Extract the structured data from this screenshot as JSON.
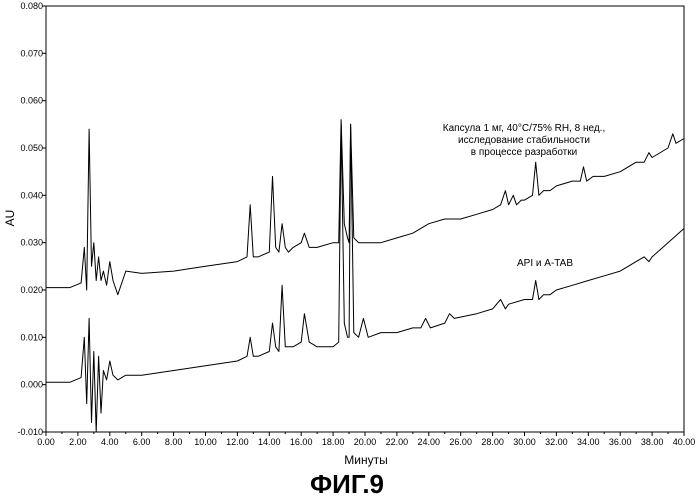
{
  "figure_caption": "ФИГ.9",
  "chart_data": {
    "type": "line",
    "xlabel": "Минуты",
    "ylabel": "AU",
    "xlim": [
      0,
      40
    ],
    "ylim": [
      -0.01,
      0.08
    ],
    "x_ticks": [
      "0.00",
      "2.00",
      "4.00",
      "6.00",
      "8.00",
      "10.00",
      "12.00",
      "14.00",
      "16.00",
      "18.00",
      "20.00",
      "22.00",
      "24.00",
      "26.00",
      "28.00",
      "30.00",
      "32.00",
      "34.00",
      "36.00",
      "38.00",
      "40.00"
    ],
    "y_ticks": [
      "-0.010",
      "0.000",
      "0.010",
      "0.020",
      "0.030",
      "0.040",
      "0.050",
      "0.060",
      "0.070",
      "0.080"
    ],
    "grid": false,
    "annotations": [
      {
        "lines": [
          "Капсула 1 мг, 40°C/75% RH, 8 нед.,",
          "исследование стабильности",
          "в процессе разработки"
        ],
        "series": 0
      },
      {
        "lines": [
          "API и A-TAB"
        ],
        "series": 1
      }
    ],
    "series": [
      {
        "name": "Капсула 1 мг, 40°C/75% RH, 8 нед., исследование стабильности в процессе разработки",
        "x": [
          0.0,
          1.5,
          2.2,
          2.4,
          2.55,
          2.7,
          2.85,
          3.0,
          3.15,
          3.3,
          3.45,
          3.6,
          3.8,
          4.0,
          4.2,
          4.5,
          5.0,
          6.0,
          8.0,
          10.0,
          12.0,
          12.6,
          12.8,
          13.0,
          13.3,
          14.0,
          14.2,
          14.4,
          14.6,
          14.8,
          15.0,
          15.2,
          15.5,
          16.0,
          16.2,
          16.5,
          17.0,
          18.0,
          18.35,
          18.5,
          18.7,
          18.9,
          19.0,
          19.1,
          19.3,
          19.6,
          20.0,
          21.0,
          22.0,
          23.0,
          24.0,
          25.0,
          26.0,
          27.0,
          28.0,
          28.5,
          28.8,
          29.0,
          29.3,
          29.5,
          29.8,
          30.0,
          30.5,
          30.7,
          30.9,
          31.2,
          31.6,
          32.0,
          33.0,
          33.5,
          33.7,
          33.9,
          34.3,
          35.0,
          36.0,
          37.0,
          37.5,
          37.8,
          38.0,
          39.0,
          39.3,
          39.5,
          40.0
        ],
        "y": [
          0.0205,
          0.0205,
          0.0215,
          0.029,
          0.02,
          0.054,
          0.025,
          0.03,
          0.022,
          0.027,
          0.022,
          0.024,
          0.021,
          0.026,
          0.022,
          0.019,
          0.024,
          0.0235,
          0.024,
          0.025,
          0.026,
          0.027,
          0.038,
          0.027,
          0.027,
          0.028,
          0.044,
          0.029,
          0.028,
          0.034,
          0.029,
          0.028,
          0.029,
          0.03,
          0.032,
          0.029,
          0.029,
          0.03,
          0.03,
          0.056,
          0.034,
          0.031,
          0.03,
          0.055,
          0.031,
          0.03,
          0.03,
          0.03,
          0.031,
          0.032,
          0.034,
          0.035,
          0.035,
          0.036,
          0.037,
          0.038,
          0.041,
          0.038,
          0.04,
          0.038,
          0.039,
          0.039,
          0.04,
          0.047,
          0.04,
          0.041,
          0.041,
          0.042,
          0.043,
          0.043,
          0.046,
          0.043,
          0.044,
          0.044,
          0.045,
          0.047,
          0.047,
          0.049,
          0.048,
          0.05,
          0.053,
          0.051,
          0.052
        ]
      },
      {
        "name": "API и A-TAB",
        "x": [
          0.0,
          1.5,
          2.2,
          2.4,
          2.55,
          2.7,
          2.85,
          3.0,
          3.15,
          3.3,
          3.45,
          3.6,
          3.8,
          4.0,
          4.2,
          4.5,
          5.0,
          6.0,
          8.0,
          10.0,
          12.0,
          12.6,
          12.8,
          13.0,
          13.3,
          14.0,
          14.2,
          14.4,
          14.6,
          14.8,
          15.0,
          15.2,
          15.5,
          16.0,
          16.2,
          16.5,
          17.0,
          18.0,
          18.35,
          18.5,
          18.7,
          18.9,
          19.0,
          19.1,
          19.3,
          19.6,
          19.9,
          20.2,
          21.0,
          22.0,
          23.0,
          23.5,
          23.8,
          24.1,
          25.0,
          25.3,
          25.6,
          27.0,
          28.0,
          28.5,
          28.8,
          29.0,
          30.0,
          30.5,
          30.7,
          30.9,
          31.2,
          31.6,
          32.0,
          33.0,
          34.0,
          35.0,
          36.0,
          37.0,
          37.5,
          37.8,
          38.0,
          39.0,
          40.0
        ],
        "y": [
          0.0005,
          0.0005,
          0.0015,
          0.01,
          -0.004,
          0.014,
          -0.008,
          0.007,
          -0.01,
          0.006,
          -0.006,
          0.003,
          0.001,
          0.005,
          0.002,
          0.001,
          0.002,
          0.002,
          0.003,
          0.004,
          0.005,
          0.006,
          0.01,
          0.006,
          0.006,
          0.007,
          0.013,
          0.008,
          0.007,
          0.021,
          0.008,
          0.008,
          0.008,
          0.009,
          0.015,
          0.009,
          0.008,
          0.008,
          0.009,
          0.055,
          0.013,
          0.01,
          0.01,
          0.055,
          0.011,
          0.01,
          0.014,
          0.01,
          0.011,
          0.011,
          0.012,
          0.012,
          0.014,
          0.012,
          0.013,
          0.015,
          0.014,
          0.015,
          0.016,
          0.018,
          0.016,
          0.017,
          0.018,
          0.018,
          0.022,
          0.018,
          0.019,
          0.019,
          0.02,
          0.021,
          0.022,
          0.023,
          0.024,
          0.026,
          0.027,
          0.026,
          0.027,
          0.03,
          0.033
        ]
      }
    ]
  }
}
